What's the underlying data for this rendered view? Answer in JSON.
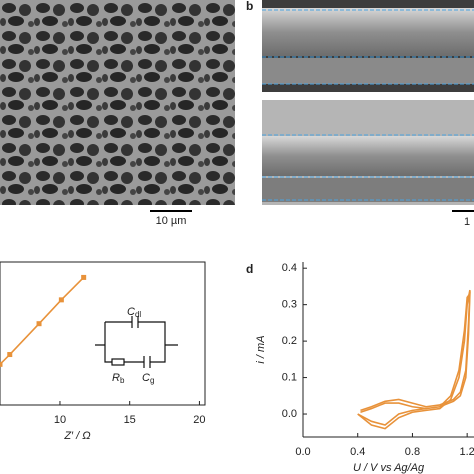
{
  "panels": {
    "b_label": "b",
    "d_label": "d",
    "scale_a": "10 µm",
    "scale_b": "1"
  },
  "circuit": {
    "c_dl": {
      "symbol": "C",
      "subscript": "dl"
    },
    "r_b": {
      "symbol": "R",
      "subscript": "b"
    },
    "c_g": {
      "symbol": "C",
      "subscript": "g"
    }
  },
  "chart_data": [
    {
      "type": "line",
      "xlabel": "Z′  / Ω",
      "x": [
        5.7,
        6.4,
        8.5,
        10.1,
        11.7
      ],
      "series": [
        {
          "color": "#e8923a",
          "values": [
            2.9,
            3.6,
            5.8,
            7.5,
            9.1
          ]
        }
      ],
      "markers": true,
      "xlim": [
        5.7,
        20.4
      ],
      "ylim": [
        0,
        10.2
      ],
      "xticks": [
        10,
        15,
        20
      ]
    },
    {
      "type": "line",
      "xlabel": "U / V vs Ag/Ag",
      "ylabel": "i / mA",
      "x": [
        0.4,
        0.5,
        0.6,
        0.7,
        0.8,
        0.9,
        1.0,
        1.08,
        1.14,
        1.18,
        1.2,
        1.22,
        1.21,
        1.19,
        1.15,
        1.1,
        1.0,
        0.9,
        0.8,
        0.7,
        0.6,
        0.5,
        0.42
      ],
      "series": [
        {
          "color": "#e8923a",
          "values": [
            0.0,
            -0.03,
            -0.04,
            -0.01,
            0.005,
            0.01,
            0.015,
            0.04,
            0.1,
            0.2,
            0.3,
            0.34,
            0.25,
            0.12,
            0.06,
            0.04,
            0.025,
            0.02,
            0.03,
            0.04,
            0.035,
            0.02,
            0.01
          ]
        },
        {
          "color": "#e8923a",
          "values": [
            0.0,
            -0.02,
            -0.03,
            0.0,
            0.01,
            0.015,
            0.02,
            0.05,
            0.12,
            0.23,
            0.32,
            0.33,
            0.22,
            0.1,
            0.05,
            0.035,
            0.02,
            0.015,
            0.02,
            0.03,
            0.03,
            0.015,
            0.005
          ]
        }
      ],
      "markers": false,
      "xlim": [
        0,
        1.25
      ],
      "ylim": [
        -0.063,
        0.417
      ],
      "xticks": [
        {
          "value": 0,
          "label": "0.0"
        },
        {
          "value": 0.4,
          "label": "0.4"
        },
        {
          "value": 0.8,
          "label": "0.8"
        },
        {
          "value": 1.2,
          "label": "1.2"
        }
      ],
      "yticks": [
        {
          "value": 0,
          "label": "0.0"
        },
        {
          "value": 0.1,
          "label": "0.1"
        },
        {
          "value": 0.2,
          "label": "0.2"
        },
        {
          "value": 0.3,
          "label": "0.3"
        },
        {
          "value": 0.4,
          "label": "0.4"
        }
      ]
    }
  ]
}
